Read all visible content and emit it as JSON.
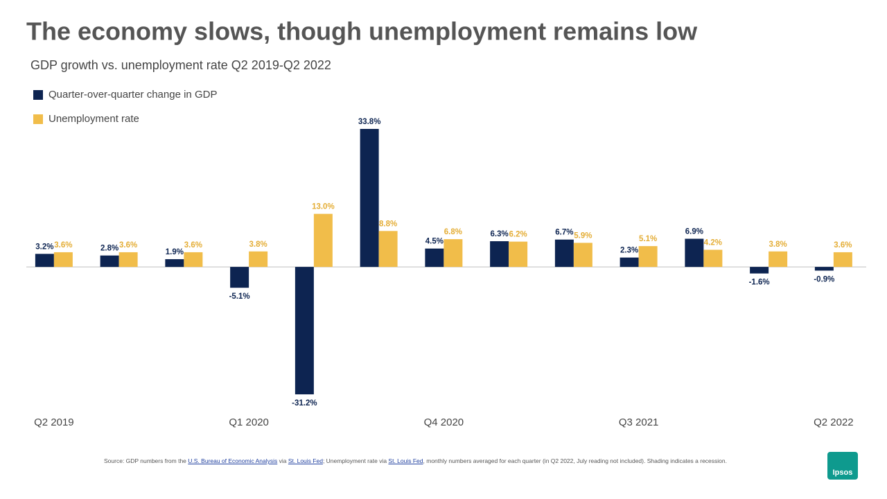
{
  "chart_data": {
    "type": "bar",
    "title": "The economy slows, though unemployment remains low",
    "subtitle": "GDP growth vs. unemployment  rate Q2 2019-Q2 2022",
    "categories": [
      "Q2 2019",
      null,
      null,
      "Q1 2020",
      null,
      null,
      "Q4 2020",
      null,
      null,
      "Q3 2021",
      null,
      null,
      "Q2 2022"
    ],
    "series": [
      {
        "name": "Quarter-over-quarter  change in GDP",
        "color": "#0d2451",
        "values": [
          3.2,
          2.8,
          1.9,
          -5.1,
          -31.2,
          33.8,
          4.5,
          6.3,
          6.7,
          2.3,
          6.9,
          -1.6,
          -0.9
        ],
        "value_labels": [
          "3.2%",
          "2.8%",
          "1.9%",
          "-5.1%",
          "-31.2%",
          "33.8%",
          "4.5%",
          "6.3%",
          "6.7%",
          "2.3%",
          "6.9%",
          "-1.6%",
          "-0.9%"
        ]
      },
      {
        "name": "Unemployment  rate",
        "color": "#f1bd4a",
        "values": [
          3.6,
          3.6,
          3.6,
          3.8,
          13.0,
          8.8,
          6.8,
          6.2,
          5.9,
          5.1,
          4.2,
          3.8,
          3.6
        ],
        "value_labels": [
          "3.6%",
          "3.6%",
          "3.6%",
          "3.8%",
          "13.0%",
          "8.8%",
          "6.8%",
          "6.2%",
          "5.9%",
          "5.1%",
          "4.2%",
          "3.8%",
          "3.6%"
        ]
      }
    ],
    "source": [
      "Source: GDP numbers from the ",
      "U.S. Bureau of Economic Analysis",
      " via ",
      "St. Louis Fed",
      "; Unemployment rate via ",
      "St. Louis Fed",
      ", monthly numbers averaged for each quarter (in Q2 2022, July reading not included). Shading indicates a recession."
    ],
    "logo": "Ipsos"
  }
}
